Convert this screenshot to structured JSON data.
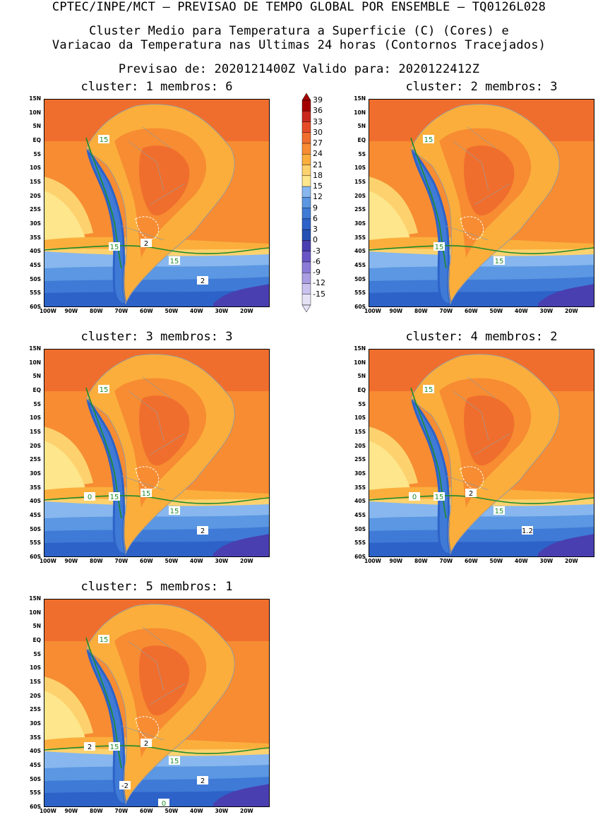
{
  "header": {
    "line1": "CPTEC/INPE/MCT — PREVISAO DE TEMPO GLOBAL POR ENSEMBLE — TQ0126L028",
    "line2": "Cluster Medio para Temperatura a Superficie (C) (Cores) e",
    "line3": "Variacao da Temperatura nas Ultimas 24 horas (Contornos Tracejados)",
    "line4": "Previsao de: 2020121400Z   Valido para: 2020122412Z"
  },
  "panels": [
    {
      "title": "cluster: 1  membros: 6",
      "labels": [
        {
          "t": "15",
          "c": "green"
        },
        {
          "t": "15",
          "c": "green"
        },
        {
          "t": "15",
          "c": "green"
        },
        {
          "t": "2",
          "c": "white"
        },
        {
          "t": "2",
          "c": "white"
        }
      ]
    },
    {
      "title": "cluster: 2  membros: 3",
      "labels": [
        {
          "t": "15",
          "c": "green"
        },
        {
          "t": "15",
          "c": "green"
        },
        {
          "t": "15",
          "c": "green"
        }
      ]
    },
    {
      "title": "cluster: 3  membros: 3",
      "labels": [
        {
          "t": "15",
          "c": "green"
        },
        {
          "t": "15",
          "c": "green"
        },
        {
          "t": "15",
          "c": "green"
        },
        {
          "t": "15",
          "c": "green"
        },
        {
          "t": "2",
          "c": "white"
        },
        {
          "t": "0",
          "c": "green"
        }
      ]
    },
    {
      "title": "cluster: 4  membros: 2",
      "labels": [
        {
          "t": "15",
          "c": "green"
        },
        {
          "t": "15",
          "c": "green"
        },
        {
          "t": "15",
          "c": "green"
        },
        {
          "t": "2",
          "c": "white"
        },
        {
          "t": "1.2",
          "c": "white"
        },
        {
          "t": "0",
          "c": "green"
        }
      ]
    },
    {
      "title": "cluster: 5  membros: 1",
      "labels": [
        {
          "t": "15",
          "c": "green"
        },
        {
          "t": "15",
          "c": "green"
        },
        {
          "t": "15",
          "c": "green"
        },
        {
          "t": "2",
          "c": "white"
        },
        {
          "t": "2",
          "c": "white"
        },
        {
          "t": "2",
          "c": "white"
        },
        {
          "t": "-2",
          "c": "white"
        },
        {
          "t": "0",
          "c": "green"
        }
      ]
    }
  ],
  "axes": {
    "lat": [
      "15N",
      "10N",
      "5N",
      "EQ",
      "5S",
      "10S",
      "15S",
      "20S",
      "25S",
      "30S",
      "35S",
      "40S",
      "45S",
      "50S",
      "55S",
      "60S"
    ],
    "lon": [
      "100W",
      "90W",
      "80W",
      "70W",
      "60W",
      "50W",
      "40W",
      "30W",
      "20W"
    ]
  },
  "colorbar": {
    "levels": [
      "39",
      "36",
      "33",
      "30",
      "27",
      "24",
      "21",
      "18",
      "15",
      "12",
      "9",
      "6",
      "3",
      "0",
      "-3",
      "-6",
      "-9",
      "-12",
      "-15"
    ],
    "colors": [
      "#a50000",
      "#c8281e",
      "#e64b28",
      "#f06e2d",
      "#f78c32",
      "#fbae3c",
      "#fdd26e",
      "#fde68c",
      "#87b7ee",
      "#5b97e2",
      "#3f7ad6",
      "#2d62c8",
      "#2450b4",
      "#4a3fb0",
      "#6a55c6",
      "#8c7bd6",
      "#ab9ee2",
      "#cbc3ee",
      "#e6e2f6"
    ]
  }
}
